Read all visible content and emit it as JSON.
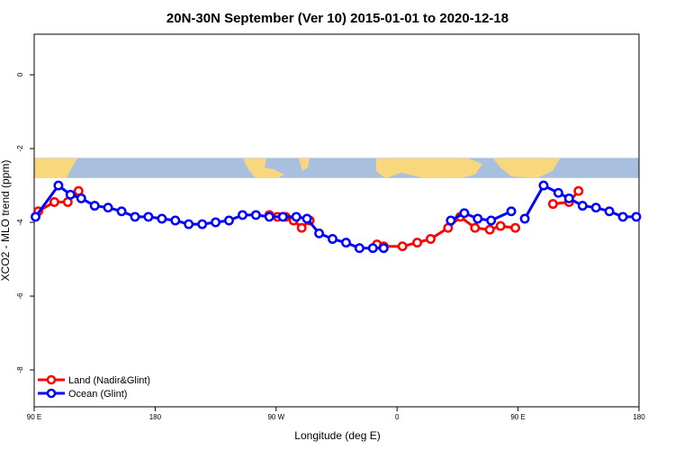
{
  "chart_data": {
    "type": "line",
    "title": "20N-30N September (Ver 10)   2015-01-01 to 2020-12-18",
    "xlabel": "Longitude (deg E)",
    "ylabel": "XCO2 - MLO trend (ppm)",
    "xlim": [
      90,
      540
    ],
    "ylim": [
      -9,
      1.1
    ],
    "x_ticks": [
      {
        "value": 90,
        "label": "90 E"
      },
      {
        "value": 180,
        "label": "180"
      },
      {
        "value": 270,
        "label": "90 W"
      },
      {
        "value": 360,
        "label": "0"
      },
      {
        "value": 450,
        "label": "90 E"
      },
      {
        "value": 540,
        "label": "180"
      }
    ],
    "y_ticks": [
      {
        "value": 0,
        "label": "0"
      },
      {
        "value": -2,
        "label": "-2"
      },
      {
        "value": -4,
        "label": "-4"
      },
      {
        "value": -6,
        "label": "-6"
      },
      {
        "value": -8,
        "label": "-8"
      }
    ],
    "grid": false,
    "legend_position": "bottom-left",
    "map_strip": {
      "y_range": [
        -2.8,
        -2.25
      ],
      "ocean_color": "#a9bfde",
      "land_color": "#f9d87d"
    },
    "series": [
      {
        "name": "Land (Nadir&Glint)",
        "color": "#ff0000",
        "segments": [
          [
            [
              93,
              -3.7
            ],
            [
              105,
              -3.45
            ],
            [
              115,
              -3.45
            ],
            [
              123,
              -3.15
            ]
          ],
          [
            [
              265,
              -3.8
            ],
            [
              271,
              -3.85
            ],
            [
              277,
              -3.85
            ],
            [
              283,
              -3.95
            ],
            [
              289,
              -4.15
            ],
            [
              295,
              -3.95
            ]
          ],
          [
            [
              345,
              -4.6
            ],
            [
              350,
              -4.65
            ],
            [
              364,
              -4.65
            ],
            [
              375,
              -4.55
            ],
            [
              385,
              -4.45
            ],
            [
              398,
              -4.15
            ],
            [
              407,
              -3.85
            ],
            [
              418,
              -4.15
            ],
            [
              429,
              -4.2
            ],
            [
              437,
              -4.1
            ],
            [
              448,
              -4.15
            ]
          ],
          [
            [
              476,
              -3.5
            ],
            [
              488,
              -3.45
            ],
            [
              495,
              -3.15
            ]
          ]
        ]
      },
      {
        "name": "Ocean (Glint)",
        "color": "#0000ff",
        "segments": [
          [
            [
              91,
              -3.85
            ],
            [
              108,
              -3.0
            ],
            [
              117,
              -3.25
            ],
            [
              125,
              -3.35
            ],
            [
              135,
              -3.55
            ],
            [
              145,
              -3.6
            ],
            [
              155,
              -3.7
            ],
            [
              165,
              -3.85
            ],
            [
              175,
              -3.85
            ],
            [
              185,
              -3.9
            ],
            [
              195,
              -3.95
            ],
            [
              205,
              -4.05
            ],
            [
              215,
              -4.05
            ],
            [
              225,
              -4.0
            ],
            [
              235,
              -3.95
            ],
            [
              245,
              -3.8
            ],
            [
              255,
              -3.8
            ],
            [
              265,
              -3.85
            ],
            [
              275,
              -3.85
            ],
            [
              285,
              -3.85
            ],
            [
              293,
              -3.9
            ],
            [
              302,
              -4.3
            ],
            [
              312,
              -4.45
            ],
            [
              322,
              -4.55
            ],
            [
              332,
              -4.7
            ],
            [
              342,
              -4.7
            ],
            [
              350,
              -4.7
            ]
          ],
          [
            [
              400,
              -3.95
            ],
            [
              410,
              -3.75
            ],
            [
              420,
              -3.9
            ],
            [
              430,
              -3.95
            ],
            [
              445,
              -3.7
            ]
          ],
          [
            [
              455,
              -3.9
            ],
            [
              469,
              -3.0
            ],
            [
              480,
              -3.2
            ],
            [
              488,
              -3.35
            ],
            [
              498,
              -3.55
            ],
            [
              508,
              -3.6
            ],
            [
              518,
              -3.7
            ],
            [
              528,
              -3.85
            ],
            [
              538,
              -3.85
            ]
          ]
        ]
      }
    ]
  }
}
